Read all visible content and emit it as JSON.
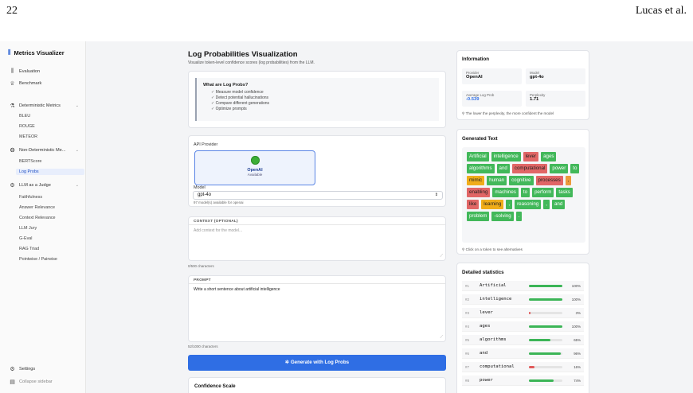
{
  "paper": {
    "page_number": "22",
    "authors": "Lucas et al."
  },
  "sidebar": {
    "app_title": "Metrics Visualizer",
    "evaluation": "Evaluation",
    "benchmark": "Benchmark",
    "deterministic": "Deterministic Metrics",
    "det_items": [
      "BLEU",
      "ROUGE",
      "METEOR"
    ],
    "nondeterministic": "Non-Deterministic Me...",
    "nondet_items": [
      "BERTScore",
      "Log Probs"
    ],
    "judge": "LLM as a Judge",
    "judge_items": [
      "Faithfulness",
      "Answer Relevance",
      "Context Relevance",
      "LLM Jury",
      "G-Eval",
      "RAG Triad",
      "Pointwise / Pairwise"
    ],
    "settings": "Settings",
    "collapse": "Collapse sidebar"
  },
  "main": {
    "title": "Log Probabilities Visualization",
    "subtitle": "Visualize token-level confidence scores (log probabilities) from the LLM.",
    "info_heading": "What are Log Probs?",
    "info_items": [
      "Measure model confidence",
      "Detect potential hallucinations",
      "Compare different generations",
      "Optimize prompts"
    ],
    "api_provider_label": "API Provider",
    "provider_name": "OpenAI",
    "provider_status": "Available",
    "model_label": "Model",
    "model_value": "gpt-4o",
    "model_hint": "97 model(s) available for openai",
    "context_label": "CONTEXT (OPTIONAL)",
    "context_placeholder": "Add context for the model...",
    "context_count": "0/500 characters",
    "prompt_label": "PROMPT",
    "prompt_value": "Write a short sentence about artificial intelligence",
    "prompt_count": "52/1000 characters",
    "generate_label": "Generate with Log Probs",
    "confidence_scale": "Confidence Scale"
  },
  "info_card": {
    "title": "Information",
    "provider_k": "Provider",
    "provider_v": "OpenAI",
    "model_k": "Model",
    "model_v": "gpt-4o",
    "avg_k": "Average Log Prob",
    "avg_v": "-0.539",
    "perp_k": "Perplexity",
    "perp_v": "1.71",
    "note": "The lower the perplexity, the more confident the model"
  },
  "generated": {
    "title": "Generated Text",
    "tokens": [
      {
        "t": "Artificial",
        "c": "g"
      },
      {
        "t": "intelligence",
        "c": "g"
      },
      {
        "t": "lever",
        "c": "r"
      },
      {
        "t": "ages",
        "c": "g"
      },
      {
        "t": "algorithms",
        "c": "g"
      },
      {
        "t": "and",
        "c": "g"
      },
      {
        "t": "computational",
        "c": "r"
      },
      {
        "t": "power",
        "c": "g"
      },
      {
        "t": "to",
        "c": "g"
      },
      {
        "t": "mimic",
        "c": "y"
      },
      {
        "t": "human",
        "c": "g"
      },
      {
        "t": "cognitive",
        "c": "g"
      },
      {
        "t": "processes",
        "c": "r"
      },
      {
        "t": ",",
        "c": "o"
      },
      {
        "t": "enabling",
        "c": "r"
      },
      {
        "t": "machines",
        "c": "g"
      },
      {
        "t": "to",
        "c": "g"
      },
      {
        "t": "perform",
        "c": "g"
      },
      {
        "t": "tasks",
        "c": "g"
      },
      {
        "t": "like",
        "c": "r"
      },
      {
        "t": "learning",
        "c": "y"
      },
      {
        "t": ",",
        "c": "g"
      },
      {
        "t": "reasoning",
        "c": "g"
      },
      {
        "t": ",",
        "c": "g"
      },
      {
        "t": "and",
        "c": "g"
      },
      {
        "t": "problem",
        "c": "g"
      },
      {
        "t": "-solving",
        "c": "g"
      },
      {
        "t": ".",
        "c": "g"
      }
    ],
    "hint": "Click on a token to see alternatives"
  },
  "stats": {
    "title": "Detailed statistics",
    "rows": [
      {
        "idx": "#1",
        "token": "Artificial",
        "pct": "100%",
        "value": 1.0,
        "color": "#3cb557"
      },
      {
        "idx": "#2",
        "token": "intelligence",
        "pct": "100%",
        "value": 1.0,
        "color": "#3cb557"
      },
      {
        "idx": "#3",
        "token": "lever",
        "pct": "3%",
        "value": 0.03,
        "color": "#e05a5a"
      },
      {
        "idx": "#4",
        "token": "ages",
        "pct": "100%",
        "value": 1.0,
        "color": "#3cb557"
      },
      {
        "idx": "#5",
        "token": "algorithms",
        "pct": "65%",
        "value": 0.65,
        "color": "#3cb557"
      },
      {
        "idx": "#6",
        "token": "and",
        "pct": "96%",
        "value": 0.96,
        "color": "#3cb557"
      },
      {
        "idx": "#7",
        "token": "computational",
        "pct": "16%",
        "value": 0.16,
        "color": "#e05a5a"
      },
      {
        "idx": "#8",
        "token": "power",
        "pct": "74%",
        "value": 0.74,
        "color": "#3cb557"
      }
    ]
  }
}
